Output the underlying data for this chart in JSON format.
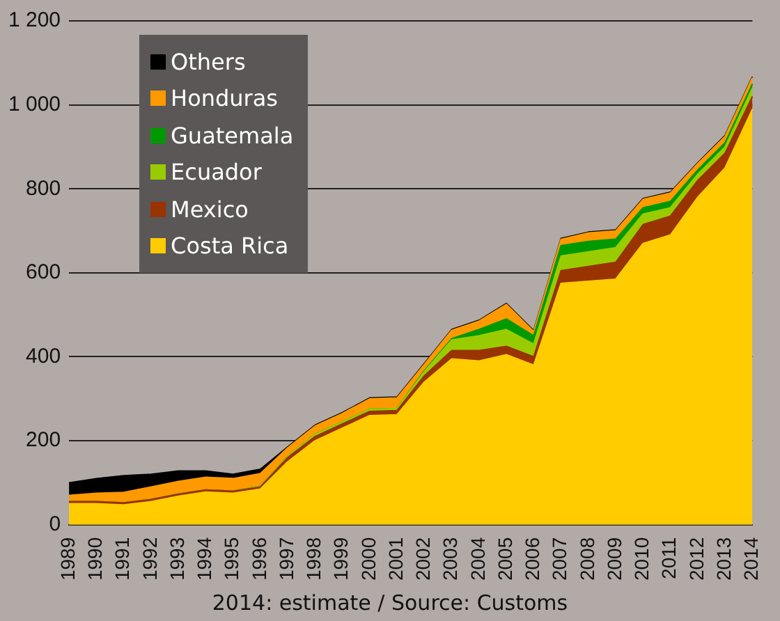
{
  "chart_data": {
    "type": "area",
    "stacked": true,
    "categories": [
      "1989",
      "1990",
      "1991",
      "1992",
      "1993",
      "1994",
      "1995",
      "1996",
      "1997",
      "1998",
      "1999",
      "2000",
      "2001",
      "2002",
      "2003",
      "2004",
      "2005",
      "2006",
      "2007",
      "2008",
      "2009",
      "2010",
      "2011",
      "2012",
      "2013",
      "2014"
    ],
    "series": [
      {
        "name": "Costa Rica",
        "color": "#ffcc00",
        "values": [
          50,
          50,
          47,
          55,
          68,
          78,
          75,
          85,
          150,
          200,
          230,
          260,
          262,
          340,
          395,
          390,
          405,
          380,
          575,
          580,
          585,
          670,
          690,
          780,
          850,
          990
        ]
      },
      {
        "name": "Mexico",
        "color": "#993300",
        "values": [
          5,
          5,
          5,
          5,
          5,
          5,
          5,
          5,
          10,
          10,
          10,
          10,
          10,
          15,
          20,
          25,
          20,
          20,
          30,
          35,
          40,
          45,
          45,
          40,
          35,
          30
        ]
      },
      {
        "name": "Ecuador",
        "color": "#99cc00",
        "values": [
          0,
          0,
          0,
          0,
          0,
          0,
          0,
          2,
          3,
          5,
          5,
          5,
          5,
          10,
          25,
          35,
          40,
          30,
          35,
          35,
          35,
          25,
          20,
          15,
          15,
          20
        ]
      },
      {
        "name": "Guatemala",
        "color": "#009900",
        "values": [
          0,
          0,
          0,
          0,
          0,
          0,
          0,
          0,
          0,
          0,
          0,
          0,
          0,
          2,
          3,
          15,
          25,
          20,
          25,
          25,
          20,
          15,
          15,
          10,
          10,
          10
        ]
      },
      {
        "name": "Honduras",
        "color": "#ff9900",
        "values": [
          15,
          20,
          25,
          30,
          30,
          30,
          30,
          30,
          20,
          20,
          20,
          25,
          25,
          15,
          20,
          20,
          35,
          10,
          15,
          20,
          20,
          20,
          20,
          15,
          15,
          15
        ]
      },
      {
        "name": "Others",
        "color": "#000000",
        "values": [
          30,
          35,
          40,
          30,
          25,
          15,
          10,
          10,
          2,
          2,
          2,
          2,
          2,
          2,
          2,
          2,
          2,
          2,
          2,
          2,
          2,
          2,
          2,
          2,
          2,
          2
        ]
      }
    ],
    "ylim": [
      0,
      1200
    ],
    "yticks": [
      0,
      200,
      400,
      600,
      800,
      {
        "value": 1000,
        "label": "1 000"
      },
      {
        "value": 1200,
        "label": "1 200"
      }
    ],
    "grid": "y",
    "legend": "top left",
    "annotations": [
      "2014: estimate / Source: Customs"
    ]
  }
}
